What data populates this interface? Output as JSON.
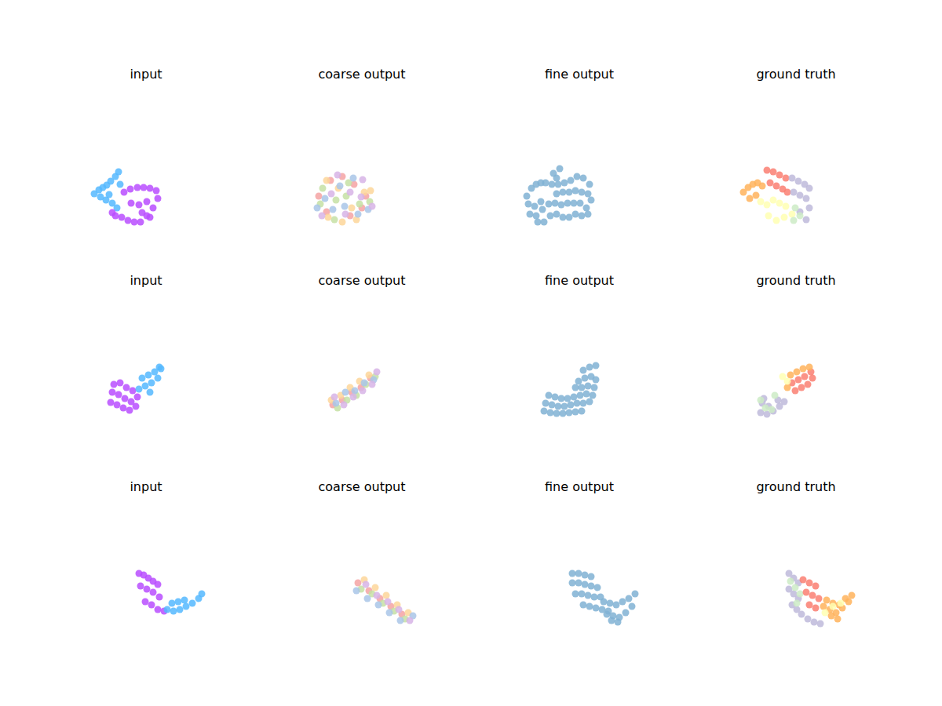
{
  "chart_data": [
    {
      "type": "scatter",
      "title": "input",
      "xlim": [
        -110,
        110
      ],
      "ylim": [
        -110,
        110
      ],
      "tick_labels": false,
      "series": [
        {
          "color": "#55b9ff",
          "x": [
            -41,
            -35,
            -30,
            -25,
            -20,
            -14,
            -10,
            -33,
            -26,
            -18,
            -12,
            -8,
            -22
          ],
          "values": [
            -2,
            3,
            6,
            9,
            14,
            20,
            26,
            -6,
            -10,
            -14,
            -20,
            10,
            -3
          ]
        },
        {
          "color": "#b84dff",
          "x": [
            -3,
            5,
            14,
            22,
            30,
            38,
            40,
            34,
            26,
            18,
            10,
            2,
            -6,
            -14,
            -18,
            6,
            16,
            26,
            20,
            30
          ],
          "values": [
            0,
            4,
            6,
            6,
            5,
            2,
            -8,
            -20,
            -30,
            -38,
            -38,
            -36,
            -32,
            -30,
            -26,
            -14,
            -16,
            -12,
            -26,
            -32
          ]
        }
      ]
    },
    {
      "type": "scatter",
      "title": "coarse output",
      "xlim": [
        -110,
        110
      ],
      "ylim": [
        -110,
        110
      ],
      "tick_labels": false,
      "series": [
        {
          "color": "#f4a3a3",
          "x": [
            -30,
            -15,
            0,
            15,
            30,
            -20,
            10,
            25
          ],
          "values": [
            -5,
            15,
            20,
            10,
            -5,
            -25,
            -30,
            -20
          ]
        },
        {
          "color": "#c5e1a5",
          "x": [
            -25,
            -8,
            8,
            22,
            35,
            -10,
            5,
            -28
          ],
          "values": [
            5,
            -10,
            12,
            -15,
            -12,
            -35,
            -5,
            -15
          ]
        },
        {
          "color": "#fdd69a",
          "x": [
            -20,
            -5,
            12,
            28,
            0,
            -18,
            18,
            36
          ],
          "values": [
            15,
            5,
            -20,
            0,
            -38,
            -32,
            -35,
            2
          ]
        },
        {
          "color": "#a9c6e8",
          "x": [
            -32,
            -12,
            3,
            20,
            33,
            -3,
            14,
            -22
          ],
          "values": [
            -20,
            -22,
            -18,
            -28,
            -22,
            8,
            18,
            -8
          ]
        },
        {
          "color": "#d7b4e6",
          "x": [
            -26,
            -6,
            10,
            26,
            -14,
            4,
            24,
            38
          ],
          "values": [
            -30,
            22,
            0,
            16,
            -2,
            -28,
            -6,
            -18
          ]
        }
      ]
    },
    {
      "type": "scatter",
      "title": "fine output",
      "xlim": [
        -110,
        110
      ],
      "ylim": [
        -110,
        110
      ],
      "tick_labels": false,
      "series": [
        {
          "color": "#80b1d3",
          "x": [
            -42,
            -36,
            -30,
            -24,
            -18,
            -10,
            -2,
            6,
            14,
            22,
            30,
            38,
            -40,
            -32,
            -24,
            -4,
            4,
            12,
            20,
            28,
            36,
            40,
            -38,
            -30,
            -22,
            -14,
            -6,
            2,
            10,
            18,
            26,
            34,
            -28,
            -20,
            -12,
            -4,
            4,
            12,
            20,
            28,
            36,
            -8,
            0,
            -4
          ],
          "values": [
            -5,
            5,
            10,
            12,
            12,
            10,
            10,
            12,
            15,
            20,
            18,
            10,
            -15,
            -18,
            -12,
            -2,
            0,
            0,
            2,
            0,
            -2,
            -10,
            -28,
            -30,
            -22,
            -15,
            -14,
            -16,
            -14,
            -14,
            -14,
            -20,
            -38,
            -38,
            -30,
            -28,
            -32,
            -32,
            -28,
            -30,
            -28,
            24,
            30,
            18
          ]
        }
      ]
    },
    {
      "type": "scatter",
      "title": "ground truth",
      "xlim": [
        -110,
        110
      ],
      "ylim": [
        -110,
        110
      ],
      "tick_labels": false,
      "series": [
        {
          "color": "#ffb35c",
          "x": [
            -42,
            -36,
            -30,
            -24,
            -18,
            -34,
            -26
          ],
          "values": [
            0,
            6,
            10,
            12,
            8,
            -8,
            -4
          ]
        },
        {
          "color": "#fa7f72",
          "x": [
            -12,
            -4,
            4,
            12,
            -8,
            0,
            8,
            14
          ],
          "values": [
            28,
            26,
            22,
            18,
            12,
            8,
            4,
            0
          ]
        },
        {
          "color": "#bebada",
          "x": [
            20,
            28,
            36,
            42,
            22,
            30,
            38,
            42,
            30,
            38
          ],
          "values": [
            18,
            14,
            10,
            5,
            0,
            -4,
            -8,
            -20,
            -25,
            -35
          ]
        },
        {
          "color": "#ffffb3",
          "x": [
            -20,
            -12,
            -4,
            4,
            12,
            -10,
            0,
            10,
            20
          ],
          "values": [
            -12,
            -16,
            -10,
            -14,
            -18,
            -30,
            -36,
            -32,
            -28
          ]
        },
        {
          "color": "#ccebc5",
          "x": [
            24,
            30,
            22
          ],
          "values": [
            -20,
            -30,
            -36
          ]
        }
      ]
    },
    {
      "type": "scatter",
      "title": "input",
      "xlim": [
        -110,
        110
      ],
      "ylim": [
        -110,
        110
      ],
      "tick_labels": false,
      "series": [
        {
          "color": "#b84dff",
          "x": [
            -20,
            -12,
            -4,
            4,
            12,
            -18,
            -10,
            -2,
            6,
            14,
            -16,
            -8,
            0,
            8
          ],
          "values": [
            -5,
            -8,
            -12,
            -15,
            -10,
            8,
            5,
            0,
            -4,
            2,
            18,
            20,
            14,
            10
          ]
        },
        {
          "color": "#55b9ff",
          "x": [
            16,
            24,
            32,
            40,
            44,
            20,
            28,
            36,
            42,
            30
          ],
          "values": [
            12,
            16,
            20,
            26,
            38,
            26,
            30,
            34,
            40,
            8
          ]
        }
      ]
    },
    {
      "type": "scatter",
      "title": "coarse output",
      "xlim": [
        -110,
        110
      ],
      "ylim": [
        -110,
        110
      ],
      "tick_labels": false,
      "series": [
        {
          "color": "#f4a3a3",
          "x": [
            -12,
            0,
            12,
            24,
            36
          ],
          "values": [
            -8,
            -2,
            8,
            14,
            26
          ]
        },
        {
          "color": "#c5e1a5",
          "x": [
            -6,
            6,
            18,
            30,
            42
          ],
          "values": [
            -12,
            -2,
            4,
            18,
            28
          ]
        },
        {
          "color": "#fdd69a",
          "x": [
            -14,
            -2,
            10,
            22,
            34
          ],
          "values": [
            -2,
            4,
            14,
            22,
            30
          ]
        },
        {
          "color": "#a9c6e8",
          "x": [
            -8,
            4,
            16,
            28,
            40
          ],
          "values": [
            -6,
            8,
            10,
            20,
            24
          ]
        },
        {
          "color": "#d7b4e6",
          "x": [
            -10,
            2,
            14,
            26,
            38,
            44
          ],
          "values": [
            2,
            -8,
            2,
            10,
            18,
            34
          ]
        }
      ]
    },
    {
      "type": "scatter",
      "title": "fine output",
      "xlim": [
        -110,
        110
      ],
      "ylim": [
        -110,
        110
      ],
      "tick_labels": false,
      "series": [
        {
          "color": "#80b1d3",
          "x": [
            -20,
            -12,
            -4,
            4,
            12,
            20,
            28,
            -18,
            -10,
            -2,
            6,
            14,
            22,
            30,
            38,
            -14,
            -6,
            2,
            10,
            18,
            26,
            34,
            42,
            20,
            28,
            36,
            44,
            24,
            32,
            40,
            46,
            30,
            38,
            46
          ],
          "values": [
            -16,
            -18,
            -19,
            -19,
            -18,
            -17,
            -16,
            -6,
            -8,
            -10,
            -10,
            -8,
            -6,
            -6,
            -4,
            4,
            2,
            0,
            0,
            2,
            4,
            6,
            4,
            14,
            14,
            16,
            14,
            22,
            26,
            28,
            24,
            36,
            40,
            42
          ]
        }
      ]
    },
    {
      "type": "scatter",
      "title": "ground truth",
      "xlim": [
        -110,
        110
      ],
      "ylim": [
        -110,
        110
      ],
      "tick_labels": false,
      "series": [
        {
          "color": "#bebada",
          "x": [
            -20,
            -12,
            -4,
            4,
            -18,
            -10,
            10,
            -16,
            2
          ],
          "values": [
            -18,
            -20,
            -16,
            -10,
            -6,
            -10,
            -4,
            0,
            -2
          ]
        },
        {
          "color": "#ccebc5",
          "x": [
            -14,
            -6,
            -20,
            -2
          ],
          "values": [
            -12,
            -14,
            -2,
            4
          ]
        },
        {
          "color": "#fa7f72",
          "x": [
            20,
            28,
            36,
            44,
            24,
            32,
            40,
            46
          ],
          "values": [
            20,
            24,
            28,
            34,
            10,
            14,
            18,
            26
          ]
        },
        {
          "color": "#ffb35c",
          "x": [
            14,
            18,
            26,
            34,
            42
          ],
          "values": [
            14,
            30,
            34,
            38,
            40
          ]
        },
        {
          "color": "#ffffb3",
          "x": [
            14,
            8
          ],
          "values": [
            22,
            28
          ]
        }
      ]
    },
    {
      "type": "scatter",
      "title": "input",
      "xlim": [
        -110,
        110
      ],
      "ylim": [
        -110,
        110
      ],
      "tick_labels": false,
      "series": [
        {
          "color": "#b84dff",
          "x": [
            16,
            22,
            28,
            34,
            40,
            18,
            26,
            34,
            42,
            24,
            32,
            40,
            48
          ],
          "values": [
            40,
            38,
            34,
            30,
            26,
            24,
            20,
            16,
            10,
            4,
            0,
            -6,
            -8
          ]
        },
        {
          "color": "#55b9ff",
          "x": [
            52,
            60,
            68,
            76,
            84,
            92,
            96,
            58,
            66,
            74
          ],
          "values": [
            -6,
            -8,
            -6,
            -2,
            2,
            8,
            14,
            2,
            4,
            6
          ]
        }
      ]
    },
    {
      "type": "scatter",
      "title": "coarse output",
      "xlim": [
        -110,
        110
      ],
      "ylim": [
        -110,
        110
      ],
      "tick_labels": false,
      "series": [
        {
          "color": "#f4a3a3",
          "x": [
            20,
            34,
            48,
            62,
            76
          ],
          "values": [
            28,
            18,
            8,
            -2,
            -12
          ]
        },
        {
          "color": "#c5e1a5",
          "x": [
            24,
            38,
            52,
            66,
            80
          ],
          "values": [
            20,
            14,
            2,
            -8,
            -18
          ]
        },
        {
          "color": "#fdd69a",
          "x": [
            28,
            42,
            56,
            70,
            84
          ],
          "values": [
            32,
            22,
            12,
            0,
            -10
          ]
        },
        {
          "color": "#a9c6e8",
          "x": [
            18,
            32,
            46,
            60,
            74,
            90
          ],
          "values": [
            18,
            8,
            0,
            -10,
            -20,
            -14
          ]
        },
        {
          "color": "#d7b4e6",
          "x": [
            30,
            44,
            58,
            72,
            86
          ],
          "values": [
            26,
            12,
            4,
            -6,
            -20
          ]
        }
      ]
    },
    {
      "type": "scatter",
      "title": "fine output",
      "xlim": [
        -110,
        110
      ],
      "ylim": [
        -110,
        110
      ],
      "tick_labels": false,
      "series": [
        {
          "color": "#80b1d3",
          "x": [
            16,
            24,
            32,
            40,
            16,
            24,
            32,
            40,
            48,
            20,
            28,
            36,
            44,
            52,
            30,
            38,
            46,
            54,
            62,
            56,
            64,
            72,
            80,
            88,
            96,
            60,
            68,
            76,
            84,
            92,
            66,
            74
          ],
          "values": [
            40,
            40,
            38,
            36,
            28,
            28,
            26,
            24,
            22,
            14,
            14,
            12,
            10,
            10,
            0,
            -2,
            -4,
            -6,
            -8,
            4,
            2,
            0,
            4,
            8,
            14,
            -12,
            -14,
            -16,
            -10,
            -2,
            -20,
            -22
          ]
        }
      ]
    },
    {
      "type": "scatter",
      "title": "ground truth",
      "xlim": [
        -110,
        110
      ],
      "ylim": [
        -110,
        110
      ],
      "tick_labels": false,
      "series": [
        {
          "color": "#bebada",
          "x": [
            16,
            22,
            28,
            16,
            22,
            28,
            20,
            26,
            32,
            40,
            48,
            56
          ],
          "values": [
            40,
            34,
            28,
            20,
            14,
            8,
            0,
            -6,
            -12,
            -18,
            -22,
            -24
          ]
        },
        {
          "color": "#ccebc5",
          "x": [
            18,
            24,
            30,
            26
          ],
          "values": [
            30,
            22,
            14,
            2
          ]
        },
        {
          "color": "#fa7f72",
          "x": [
            34,
            42,
            50,
            38,
            46,
            54,
            42,
            50
          ],
          "values": [
            32,
            28,
            24,
            16,
            12,
            8,
            0,
            -4
          ]
        },
        {
          "color": "#ffb35c",
          "x": [
            60,
            68,
            76,
            84,
            92,
            64,
            72,
            80,
            88,
            96,
            70,
            78
          ],
          "values": [
            -2,
            -6,
            -10,
            -4,
            4,
            6,
            2,
            0,
            8,
            12,
            -14,
            -18
          ]
        },
        {
          "color": "#ffffb3",
          "x": [
            62,
            72,
            82
          ],
          "values": [
            -10,
            -2,
            2
          ]
        }
      ]
    }
  ]
}
